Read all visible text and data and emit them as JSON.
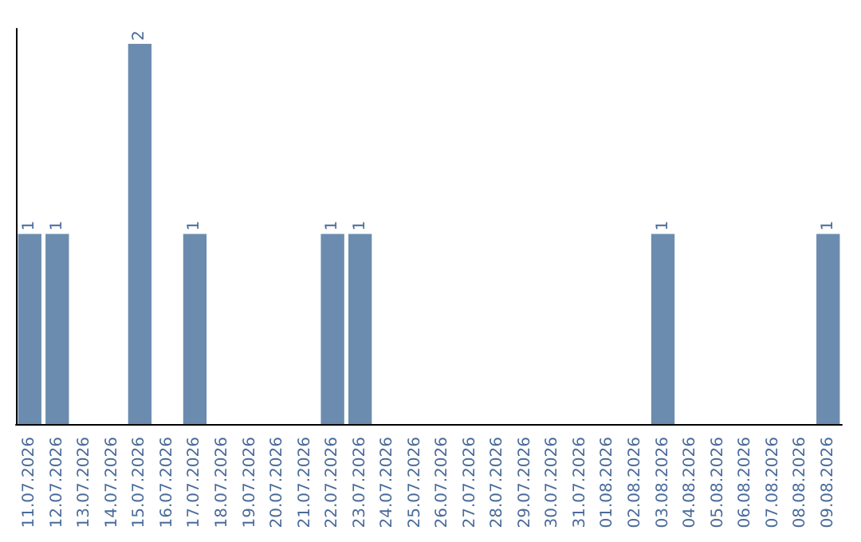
{
  "chart_data": {
    "type": "bar",
    "categories": [
      "11.07.2026",
      "12.07.2026",
      "13.07.2026",
      "14.07.2026",
      "15.07.2026",
      "16.07.2026",
      "17.07.2026",
      "18.07.2026",
      "19.07.2026",
      "20.07.2026",
      "21.07.2026",
      "22.07.2026",
      "23.07.2026",
      "24.07.2026",
      "25.07.2026",
      "26.07.2026",
      "27.07.2026",
      "28.07.2026",
      "29.07.2026",
      "30.07.2026",
      "31.07.2026",
      "01.08.2026",
      "02.08.2026",
      "03.08.2026",
      "04.08.2026",
      "05.08.2026",
      "06.08.2026",
      "07.08.2026",
      "08.08.2026",
      "09.08.2026"
    ],
    "values": [
      1,
      1,
      0,
      0,
      2,
      0,
      1,
      0,
      0,
      0,
      0,
      1,
      1,
      0,
      0,
      0,
      0,
      0,
      0,
      0,
      0,
      0,
      0,
      1,
      0,
      0,
      0,
      0,
      0,
      1
    ],
    "value_labels": [
      "1",
      "1",
      null,
      null,
      "2",
      null,
      "1",
      null,
      null,
      null,
      null,
      "1",
      "1",
      null,
      null,
      null,
      null,
      null,
      null,
      null,
      null,
      null,
      null,
      "1",
      null,
      null,
      null,
      null,
      null,
      "1"
    ],
    "color": "#6b8cae",
    "tick_labels": "x"
  }
}
